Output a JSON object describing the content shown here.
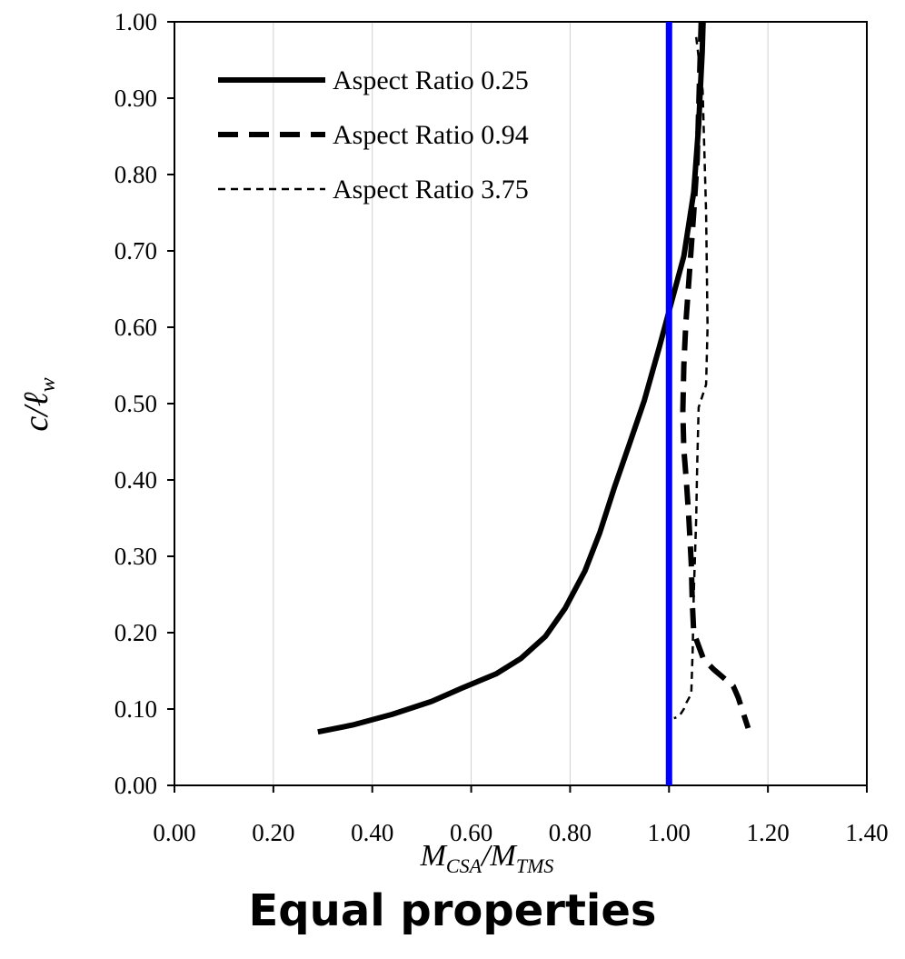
{
  "chart_data": {
    "type": "line",
    "caption": "Equal properties",
    "xlabel": {
      "main": "M",
      "sub1": "CSA",
      "slash": "/",
      "main2": "M",
      "sub2": "TMS"
    },
    "ylabel": {
      "main": "c/ℓ",
      "sub": "w"
    },
    "xlim": [
      0,
      1.4
    ],
    "ylim": [
      0,
      1.0
    ],
    "x_ticks": [
      "0.00",
      "0.20",
      "0.40",
      "0.60",
      "0.80",
      "1.00",
      "1.20",
      "1.40"
    ],
    "y_ticks": [
      "0.00",
      "0.10",
      "0.20",
      "0.30",
      "0.40",
      "0.50",
      "0.60",
      "0.70",
      "0.80",
      "0.90",
      "1.00"
    ],
    "grid": "vertical major gridlines",
    "legend_position": "top-left",
    "reference_line": {
      "x": 1.0,
      "color": "#0000ff"
    },
    "series": [
      {
        "name": "Aspect Ratio 0.25",
        "style": "solid",
        "points": [
          [
            0.29,
            0.07
          ],
          [
            0.36,
            0.079
          ],
          [
            0.44,
            0.093
          ],
          [
            0.52,
            0.11
          ],
          [
            0.58,
            0.127
          ],
          [
            0.65,
            0.146
          ],
          [
            0.7,
            0.166
          ],
          [
            0.75,
            0.195
          ],
          [
            0.79,
            0.232
          ],
          [
            0.83,
            0.281
          ],
          [
            0.86,
            0.331
          ],
          [
            0.89,
            0.391
          ],
          [
            0.92,
            0.447
          ],
          [
            0.95,
            0.504
          ],
          [
            0.98,
            0.573
          ],
          [
            1.0,
            0.621
          ],
          [
            1.03,
            0.693
          ],
          [
            1.05,
            0.777
          ],
          [
            1.06,
            0.864
          ],
          [
            1.064,
            0.92
          ],
          [
            1.067,
            0.96
          ],
          [
            1.069,
            1.0
          ]
        ]
      },
      {
        "name": "Aspect Ratio 0.94",
        "style": "long-dash",
        "points": [
          [
            1.065,
            1.0
          ],
          [
            1.057,
            0.82
          ],
          [
            1.05,
            0.75
          ],
          [
            1.04,
            0.66
          ],
          [
            1.034,
            0.605
          ],
          [
            1.03,
            0.55
          ],
          [
            1.028,
            0.49
          ],
          [
            1.03,
            0.44
          ],
          [
            1.035,
            0.4
          ],
          [
            1.04,
            0.35
          ],
          [
            1.045,
            0.29
          ],
          [
            1.047,
            0.24
          ],
          [
            1.05,
            0.2
          ],
          [
            1.07,
            0.165
          ],
          [
            1.09,
            0.152
          ],
          [
            1.13,
            0.13
          ],
          [
            1.14,
            0.115
          ],
          [
            1.15,
            0.095
          ],
          [
            1.16,
            0.075
          ]
        ]
      },
      {
        "name": "Aspect Ratio 3.75",
        "style": "short-dash",
        "points": [
          [
            1.055,
            0.98
          ],
          [
            1.068,
            0.91
          ],
          [
            1.075,
            0.75
          ],
          [
            1.078,
            0.6
          ],
          [
            1.075,
            0.525
          ],
          [
            1.06,
            0.495
          ],
          [
            1.057,
            0.42
          ],
          [
            1.055,
            0.35
          ],
          [
            1.05,
            0.25
          ],
          [
            1.048,
            0.18
          ],
          [
            1.045,
            0.12
          ],
          [
            1.035,
            0.108
          ],
          [
            1.03,
            0.1
          ],
          [
            1.02,
            0.09
          ],
          [
            1.01,
            0.088
          ]
        ]
      }
    ]
  }
}
